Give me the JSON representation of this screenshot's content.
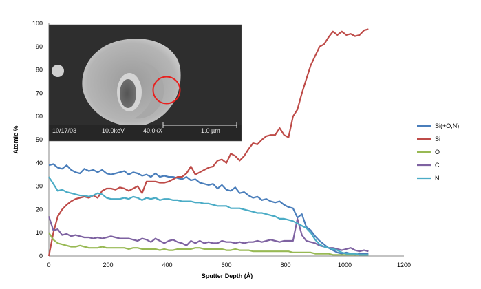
{
  "chart_data": {
    "type": "line",
    "xlabel": "Sputter Depth (Å)",
    "ylabel": "Atomic %",
    "xlim": [
      0,
      1200
    ],
    "ylim": [
      0,
      100
    ],
    "xticks": [
      "0",
      "200",
      "400",
      "600",
      "800",
      "1000",
      "1200"
    ],
    "yticks": [
      "0",
      "10",
      "20",
      "30",
      "40",
      "50",
      "60",
      "70",
      "80",
      "90",
      "100"
    ],
    "grid": false,
    "legend_position": "right",
    "series": [
      {
        "name": "Si(+O,N)",
        "color": "#4a7ebb",
        "x": [
          0,
          15,
          30,
          45,
          60,
          75,
          90,
          105,
          120,
          135,
          150,
          165,
          180,
          195,
          210,
          225,
          240,
          255,
          270,
          285,
          300,
          315,
          330,
          345,
          360,
          375,
          390,
          405,
          420,
          435,
          450,
          465,
          480,
          495,
          510,
          525,
          540,
          555,
          570,
          585,
          600,
          615,
          630,
          645,
          660,
          675,
          690,
          705,
          720,
          735,
          750,
          765,
          780,
          795,
          810,
          825,
          840,
          855,
          870,
          885,
          900,
          915,
          930,
          945,
          960,
          975,
          990,
          1005,
          1020,
          1035,
          1050,
          1065,
          1080
        ],
        "y": [
          39,
          39.5,
          38,
          37.5,
          39,
          37,
          36,
          35.5,
          37.5,
          36.5,
          37,
          36,
          37,
          35.5,
          35,
          35.5,
          36,
          36.5,
          35,
          36,
          35.5,
          34.5,
          35,
          34,
          35.5,
          34,
          34.5,
          34,
          34,
          33.5,
          33,
          34,
          32.5,
          33,
          31.5,
          31,
          30.5,
          31,
          29,
          30.5,
          28.5,
          28,
          29.5,
          27,
          27.5,
          26,
          25,
          25.5,
          24,
          24.5,
          23.5,
          23,
          23.5,
          22,
          21,
          20.5,
          16.5,
          18,
          12.5,
          11,
          8.5,
          6.5,
          5,
          3.5,
          2.5,
          1.5,
          1,
          1.5,
          1,
          0.5,
          1,
          1,
          1
        ]
      },
      {
        "name": "Si",
        "color": "#be4b48",
        "x": [
          0,
          15,
          30,
          45,
          60,
          75,
          90,
          105,
          120,
          135,
          150,
          165,
          180,
          195,
          210,
          225,
          240,
          255,
          270,
          285,
          300,
          315,
          330,
          345,
          360,
          375,
          390,
          405,
          420,
          435,
          450,
          465,
          480,
          495,
          510,
          525,
          540,
          555,
          570,
          585,
          600,
          615,
          630,
          645,
          660,
          675,
          690,
          705,
          720,
          735,
          750,
          765,
          780,
          795,
          810,
          825,
          840,
          855,
          870,
          885,
          900,
          915,
          930,
          945,
          960,
          975,
          990,
          1005,
          1020,
          1035,
          1050,
          1065,
          1080
        ],
        "y": [
          0,
          10,
          17,
          20,
          22,
          23.5,
          24.5,
          25,
          25.5,
          25,
          26,
          25,
          28,
          29,
          29,
          28.5,
          29.5,
          29,
          28,
          29,
          30,
          27,
          32,
          32,
          32,
          31.5,
          31.5,
          32,
          33,
          34,
          34,
          35.5,
          38.5,
          35,
          36,
          37,
          38,
          38.5,
          41,
          41.5,
          40,
          44,
          43,
          41,
          43,
          46,
          48.5,
          48,
          50,
          51.5,
          52,
          52,
          55,
          52,
          51,
          60,
          63,
          70,
          76,
          82,
          86,
          90,
          91,
          94,
          96.5,
          95,
          96.5,
          95,
          95.5,
          94.5,
          95,
          97,
          97.5
        ]
      },
      {
        "name": "O",
        "color": "#98b954",
        "x": [
          0,
          15,
          30,
          45,
          60,
          75,
          90,
          105,
          120,
          135,
          150,
          165,
          180,
          195,
          210,
          225,
          240,
          255,
          270,
          285,
          300,
          315,
          330,
          345,
          360,
          375,
          390,
          405,
          420,
          435,
          450,
          465,
          480,
          495,
          510,
          525,
          540,
          555,
          570,
          585,
          600,
          615,
          630,
          645,
          660,
          675,
          690,
          705,
          720,
          735,
          750,
          765,
          780,
          795,
          810,
          825,
          840,
          855,
          870,
          885,
          900,
          915,
          930,
          945,
          960,
          975,
          990,
          1005,
          1020,
          1035,
          1050,
          1065,
          1080
        ],
        "y": [
          10,
          7,
          5.5,
          5,
          4.5,
          4,
          4,
          4.5,
          4,
          3.5,
          3.5,
          3.5,
          4,
          3.5,
          3.5,
          3.5,
          3.5,
          3.5,
          3,
          3.5,
          3.5,
          3,
          3,
          3,
          3,
          2.5,
          3,
          2.5,
          2.5,
          3,
          3,
          3,
          3,
          3.5,
          3.5,
          3,
          3,
          3,
          3,
          3,
          2.5,
          2.5,
          3,
          2.5,
          2.5,
          2.5,
          2,
          2,
          2,
          2,
          2,
          2,
          2,
          2,
          2,
          1.5,
          1.5,
          1.5,
          1.5,
          1.5,
          1,
          1,
          1,
          1,
          0.5,
          0.5,
          0.5,
          0.5,
          0.5,
          0.5,
          0.5,
          0.5,
          0.5
        ]
      },
      {
        "name": "C",
        "color": "#7e62a1",
        "x": [
          0,
          15,
          30,
          45,
          60,
          75,
          90,
          105,
          120,
          135,
          150,
          165,
          180,
          195,
          210,
          225,
          240,
          255,
          270,
          285,
          300,
          315,
          330,
          345,
          360,
          375,
          390,
          405,
          420,
          435,
          450,
          465,
          480,
          495,
          510,
          525,
          540,
          555,
          570,
          585,
          600,
          615,
          630,
          645,
          660,
          675,
          690,
          705,
          720,
          735,
          750,
          765,
          780,
          795,
          810,
          825,
          840,
          855,
          870,
          885,
          900,
          915,
          930,
          945,
          960,
          975,
          990,
          1005,
          1020,
          1035,
          1050,
          1065,
          1080
        ],
        "y": [
          17,
          11,
          11.5,
          9,
          9.5,
          8.5,
          9,
          8.5,
          8,
          8,
          7.5,
          8,
          7.5,
          8,
          8.5,
          8,
          7.5,
          7.5,
          7.5,
          7,
          6.5,
          7.5,
          7,
          6,
          7.5,
          6.5,
          5.5,
          6.5,
          7,
          6,
          5.5,
          4.5,
          6.5,
          5.5,
          6.5,
          5.5,
          6,
          5.5,
          5.5,
          6.5,
          6,
          6,
          5.5,
          6,
          5.5,
          6,
          6,
          6.5,
          6,
          6.5,
          7,
          6.5,
          6,
          6.5,
          6.5,
          6.5,
          16,
          9,
          6.5,
          6,
          5.5,
          4.5,
          4,
          3.5,
          3.5,
          3,
          2.5,
          3,
          3.5,
          2.5,
          2,
          2.5,
          2
        ]
      },
      {
        "name": "N",
        "color": "#4bacc6",
        "x": [
          0,
          15,
          30,
          45,
          60,
          75,
          90,
          105,
          120,
          135,
          150,
          165,
          180,
          195,
          210,
          225,
          240,
          255,
          270,
          285,
          300,
          315,
          330,
          345,
          360,
          375,
          390,
          405,
          420,
          435,
          450,
          465,
          480,
          495,
          510,
          525,
          540,
          555,
          570,
          585,
          600,
          615,
          630,
          645,
          660,
          675,
          690,
          705,
          720,
          735,
          750,
          765,
          780,
          795,
          810,
          825,
          840,
          855,
          870,
          885,
          900,
          915,
          930,
          945,
          960,
          975,
          990,
          1005,
          1020,
          1035,
          1050,
          1065,
          1080
        ],
        "y": [
          34,
          31,
          28,
          28.5,
          27.5,
          27,
          26.5,
          26,
          26,
          25.5,
          26,
          27,
          26.5,
          25,
          24.5,
          24.5,
          24.5,
          25,
          24.5,
          25.5,
          25,
          24,
          25,
          24.5,
          25,
          24,
          24.5,
          24.5,
          24,
          24,
          23.5,
          23.5,
          23.5,
          23,
          23,
          22.5,
          22.5,
          22,
          21.5,
          21.5,
          21.5,
          20.5,
          20.5,
          20.5,
          20,
          19.5,
          19,
          18.5,
          18.5,
          18,
          17.5,
          17,
          16,
          16,
          15.5,
          15,
          14,
          13,
          12,
          10,
          7,
          5,
          4,
          3.5,
          3,
          2.5,
          1.5,
          1,
          1,
          1,
          0.5,
          0.5,
          0.5
        ]
      }
    ]
  },
  "inset": {
    "icon": "sem-micrograph",
    "date_label": "10/17/03",
    "voltage_label": "10.0keV",
    "magnification_label": "40.0kX",
    "scale_label": "1.0 µm",
    "marker_color": "#e8201e"
  }
}
